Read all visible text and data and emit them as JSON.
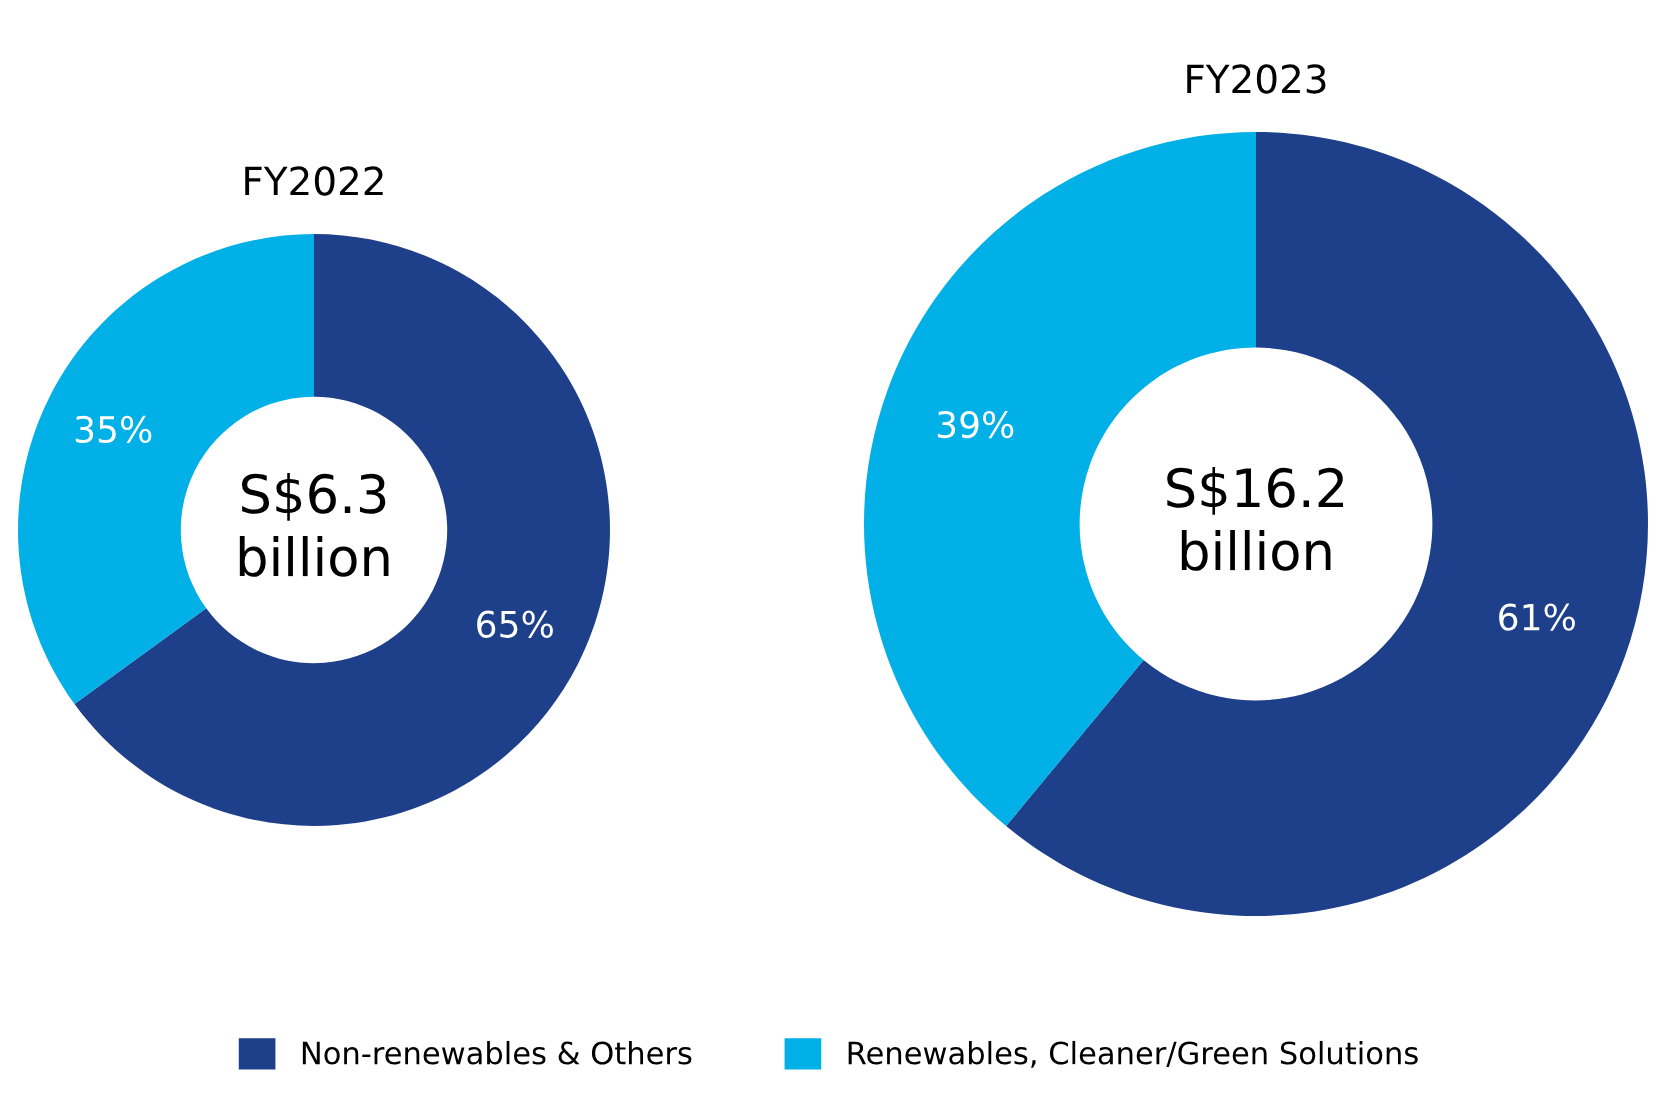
{
  "chart_data": [
    {
      "type": "donut",
      "title": "FY2022",
      "categories": [
        "Non-renewables & Others",
        "Renewables, Cleaner/Green Solutions"
      ],
      "values": [
        65,
        35
      ],
      "colors": [
        "#1e3f8a",
        "#00b0e6"
      ],
      "value_labels": [
        "65%",
        "35%"
      ],
      "annotations": [
        "S$6.3\nbillion"
      ],
      "legend": "bottom"
    },
    {
      "type": "donut",
      "title": "FY2023",
      "categories": [
        null,
        null
      ],
      "values": [
        61,
        39
      ],
      "colors": [
        "#1e3f8a",
        "#00b0e6"
      ],
      "value_labels": [
        "61%",
        "39%"
      ],
      "annotations": [
        "S$16.2\nbillion"
      ]
    }
  ]
}
